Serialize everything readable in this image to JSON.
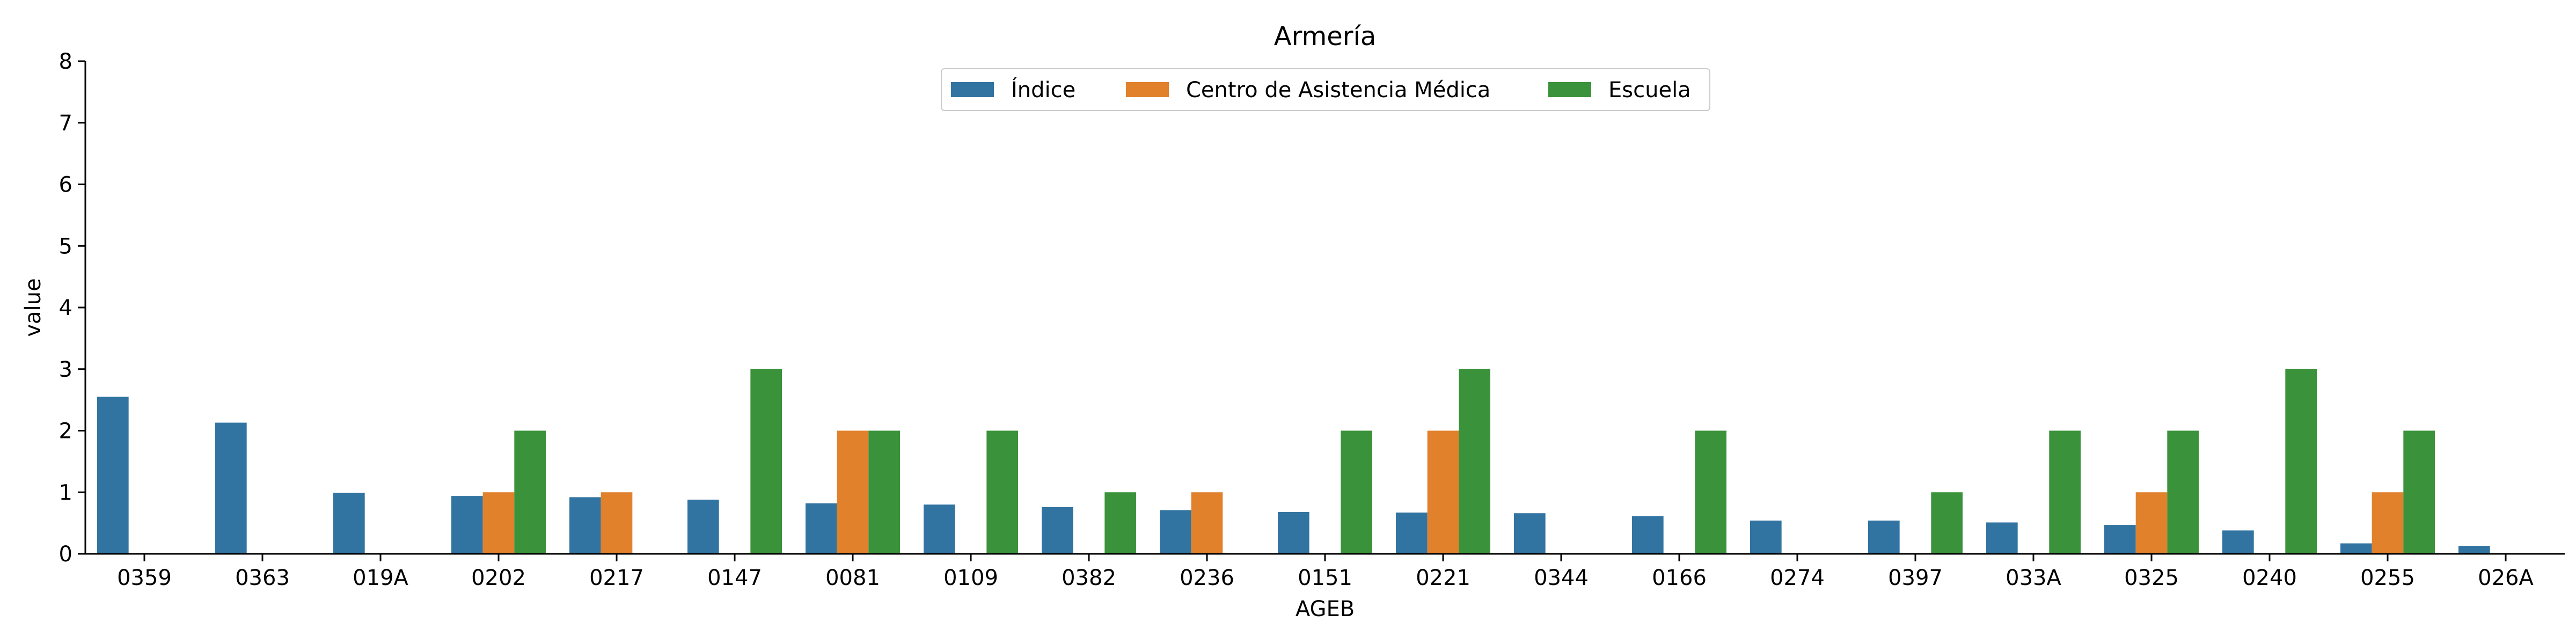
{
  "chart_data": {
    "type": "bar",
    "title": "Armería",
    "xlabel": "AGEB",
    "ylabel": "value",
    "ylim": [
      0,
      8
    ],
    "yticks": [
      0,
      1,
      2,
      3,
      4,
      5,
      6,
      7,
      8
    ],
    "grid": false,
    "legend_position": "top-center",
    "categories": [
      "0359",
      "0363",
      "019A",
      "0202",
      "0217",
      "0147",
      "0081",
      "0109",
      "0382",
      "0236",
      "0151",
      "0221",
      "0344",
      "0166",
      "0274",
      "0397",
      "033A",
      "0325",
      "0240",
      "0255",
      "026A"
    ],
    "series": [
      {
        "name": "Índice",
        "color": "#3274a1",
        "values": [
          2.55,
          2.13,
          0.99,
          0.94,
          0.92,
          0.88,
          0.82,
          0.8,
          0.76,
          0.71,
          0.68,
          0.67,
          0.66,
          0.61,
          0.54,
          0.54,
          0.51,
          0.47,
          0.38,
          0.17,
          0.13
        ]
      },
      {
        "name": "Centro de Asistencia Médica",
        "color": "#e1812c",
        "values": [
          0,
          0,
          0,
          1,
          1,
          0,
          2,
          0,
          0,
          1,
          0,
          2,
          0,
          0,
          0,
          0,
          0,
          1,
          0,
          1,
          0
        ]
      },
      {
        "name": "Escuela",
        "color": "#3a923a",
        "values": [
          0,
          0,
          0,
          2,
          0,
          3,
          2,
          2,
          1,
          0,
          2,
          3,
          0,
          2,
          0,
          1,
          2,
          2,
          3,
          2,
          0
        ]
      }
    ]
  }
}
